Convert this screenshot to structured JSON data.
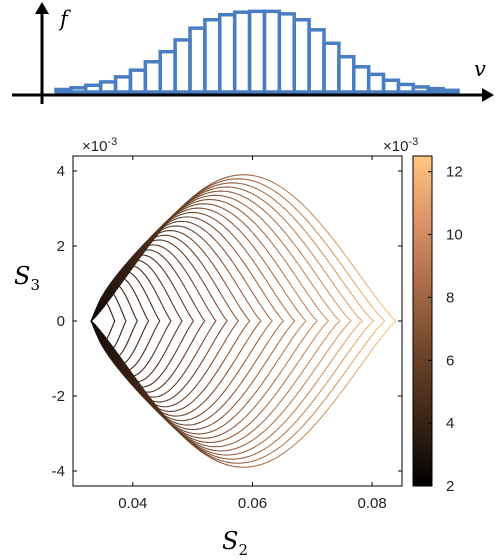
{
  "chart_data": [
    {
      "type": "bar",
      "xlabel": "v",
      "ylabel": "f",
      "values": [
        0.03,
        0.05,
        0.08,
        0.12,
        0.18,
        0.26,
        0.36,
        0.48,
        0.62,
        0.76,
        0.86,
        0.92,
        0.95,
        0.96,
        0.96,
        0.93,
        0.86,
        0.74,
        0.58,
        0.42,
        0.3,
        0.21,
        0.14,
        0.09,
        0.06,
        0.04,
        0.02
      ],
      "color": "#4a7ec2"
    },
    {
      "type": "line",
      "xlabel": "S",
      "xlabel_sub": "2",
      "ylabel": "S",
      "ylabel_sub": "3",
      "xlim": [
        0.03,
        0.085
      ],
      "ylim": [
        -4.4,
        4.4
      ],
      "y_scale_label": "×10",
      "y_scale_exp": "-3",
      "xticks": [
        "0.04",
        "0.06",
        "0.08"
      ],
      "xtick_values": [
        0.04,
        0.06,
        0.08
      ],
      "yticks": [
        "-4",
        "-2",
        "0",
        "2",
        "4"
      ],
      "ytick_values": [
        -4,
        -2,
        0,
        2,
        4
      ],
      "curve_family": {
        "left_vertex_S2": 0.033,
        "right_vertex_S2_range": [
          0.037,
          0.084
        ],
        "peak_S3_range": [
          0.55,
          3.9
        ],
        "count": 26
      },
      "colorbar": {
        "range": [
          2,
          12.5
        ],
        "ticks": [
          "2",
          "4",
          "6",
          "8",
          "10",
          "12"
        ],
        "tick_values": [
          2,
          4,
          6,
          8,
          10,
          12
        ],
        "scale_label": "×10",
        "scale_exp": "-3",
        "colormap": [
          "#000000",
          "#3a2515",
          "#6e4429",
          "#a86a45",
          "#dc9268",
          "#ffc77e"
        ]
      }
    }
  ]
}
